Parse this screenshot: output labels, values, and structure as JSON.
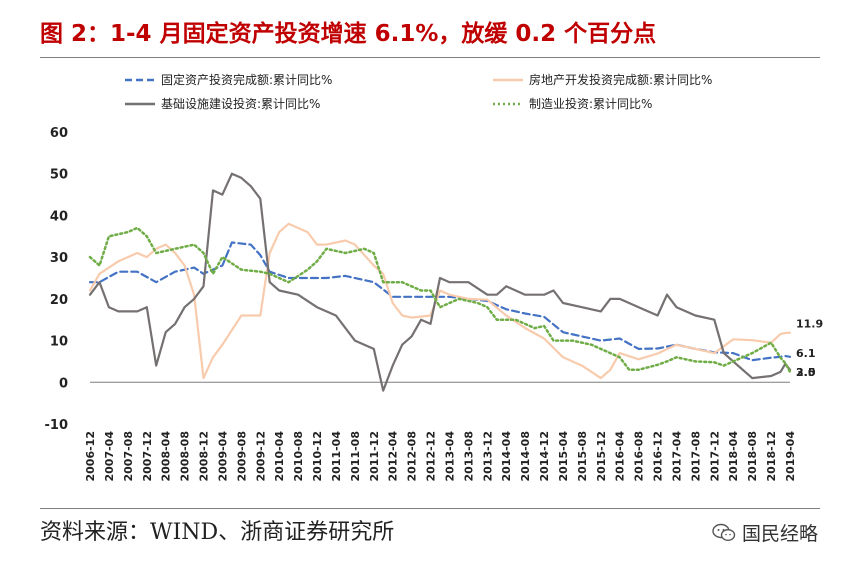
{
  "header": {
    "title": "图 2：1-4 月固定资产投资增速 6.1%，放缓 0.2 个百分点"
  },
  "footer": {
    "source": "资料来源：WIND、浙商证券研究所",
    "brand": "国民经略",
    "brand_icon": "wechat-icon"
  },
  "chart_data": {
    "type": "line",
    "title": "图 2：1-4 月固定资产投资增速 6.1%，放缓 0.2 个百分点",
    "ylim": [
      -10,
      60
    ],
    "yticks": [
      -10,
      0,
      10,
      20,
      30,
      40,
      50,
      60
    ],
    "xlim": [
      "2006-12",
      "2019-04"
    ],
    "xticks": [
      "2006-12",
      "2007-04",
      "2007-08",
      "2007-12",
      "2008-04",
      "2008-08",
      "2008-12",
      "2009-04",
      "2009-08",
      "2009-12",
      "2010-04",
      "2010-08",
      "2010-12",
      "2011-04",
      "2011-08",
      "2011-12",
      "2012-04",
      "2012-08",
      "2012-12",
      "2013-04",
      "2013-08",
      "2013-12",
      "2014-04",
      "2014-08",
      "2014-12",
      "2015-04",
      "2015-08",
      "2015-12",
      "2016-04",
      "2016-08",
      "2016-12",
      "2017-04",
      "2017-08",
      "2017-12",
      "2018-04",
      "2018-08",
      "2018-12",
      "2019-04"
    ],
    "grid": false,
    "legend_position": "top",
    "series": [
      {
        "name": "固定资产投资完成额:累计同比%",
        "color": "#4472c4",
        "style": "dashed",
        "points": [
          [
            "2006-12",
            24
          ],
          [
            "2007-02",
            24
          ],
          [
            "2007-06",
            26.5
          ],
          [
            "2007-10",
            26.5
          ],
          [
            "2008-02",
            24
          ],
          [
            "2008-06",
            26.5
          ],
          [
            "2008-10",
            27.5
          ],
          [
            "2008-12",
            26
          ],
          [
            "2009-04",
            28
          ],
          [
            "2009-06",
            33.5
          ],
          [
            "2009-10",
            33
          ],
          [
            "2009-12",
            30.5
          ],
          [
            "2010-02",
            26.5
          ],
          [
            "2010-06",
            25
          ],
          [
            "2010-10",
            25
          ],
          [
            "2011-02",
            25
          ],
          [
            "2011-06",
            25.5
          ],
          [
            "2011-10",
            24.5
          ],
          [
            "2011-12",
            24
          ],
          [
            "2012-04",
            20.5
          ],
          [
            "2012-08",
            20.5
          ],
          [
            "2012-12",
            20.5
          ],
          [
            "2013-04",
            20.5
          ],
          [
            "2013-08",
            20
          ],
          [
            "2013-12",
            19.5
          ],
          [
            "2014-04",
            17.5
          ],
          [
            "2014-08",
            16.5
          ],
          [
            "2014-12",
            15.7
          ],
          [
            "2015-04",
            12
          ],
          [
            "2015-08",
            11
          ],
          [
            "2015-12",
            10
          ],
          [
            "2016-04",
            10.5
          ],
          [
            "2016-08",
            8
          ],
          [
            "2016-12",
            8.1
          ],
          [
            "2017-04",
            9
          ],
          [
            "2017-08",
            8
          ],
          [
            "2017-12",
            7.2
          ],
          [
            "2018-04",
            7
          ],
          [
            "2018-08",
            5.3
          ],
          [
            "2018-12",
            5.9
          ],
          [
            "2019-02",
            6.1
          ],
          [
            "2019-03",
            6.3
          ],
          [
            "2019-04",
            6.1
          ]
        ]
      },
      {
        "name": "房地产开发投资完成额:累计同比%",
        "color": "#f8cbad",
        "style": "solid",
        "points": [
          [
            "2006-12",
            22
          ],
          [
            "2007-02",
            26
          ],
          [
            "2007-06",
            29
          ],
          [
            "2007-10",
            31
          ],
          [
            "2007-12",
            30
          ],
          [
            "2008-02",
            32
          ],
          [
            "2008-04",
            33
          ],
          [
            "2008-06",
            31
          ],
          [
            "2008-08",
            28
          ],
          [
            "2008-10",
            21
          ],
          [
            "2008-12",
            1
          ],
          [
            "2009-02",
            6
          ],
          [
            "2009-04",
            9
          ],
          [
            "2009-08",
            16
          ],
          [
            "2009-12",
            16
          ],
          [
            "2010-02",
            31
          ],
          [
            "2010-04",
            36
          ],
          [
            "2010-06",
            38
          ],
          [
            "2010-10",
            36
          ],
          [
            "2010-12",
            33
          ],
          [
            "2011-02",
            33
          ],
          [
            "2011-06",
            34
          ],
          [
            "2011-08",
            33
          ],
          [
            "2011-12",
            28
          ],
          [
            "2012-02",
            26
          ],
          [
            "2012-04",
            19
          ],
          [
            "2012-06",
            16
          ],
          [
            "2012-08",
            15.5
          ],
          [
            "2012-12",
            16
          ],
          [
            "2013-02",
            22
          ],
          [
            "2013-04",
            21
          ],
          [
            "2013-08",
            20
          ],
          [
            "2013-12",
            19.8
          ],
          [
            "2014-04",
            16
          ],
          [
            "2014-08",
            13
          ],
          [
            "2014-12",
            10.5
          ],
          [
            "2015-04",
            6
          ],
          [
            "2015-08",
            4
          ],
          [
            "2015-12",
            1
          ],
          [
            "2016-02",
            3
          ],
          [
            "2016-04",
            7
          ],
          [
            "2016-08",
            5.5
          ],
          [
            "2016-12",
            6.9
          ],
          [
            "2017-04",
            9
          ],
          [
            "2017-08",
            8
          ],
          [
            "2017-12",
            7
          ],
          [
            "2018-04",
            10.3
          ],
          [
            "2018-08",
            10.1
          ],
          [
            "2018-12",
            9.5
          ],
          [
            "2019-02",
            11.6
          ],
          [
            "2019-03",
            11.8
          ],
          [
            "2019-04",
            11.9
          ]
        ]
      },
      {
        "name": "基础设施建设投资:累计同比%",
        "color": "#767171",
        "style": "solid",
        "points": [
          [
            "2006-12",
            21
          ],
          [
            "2007-02",
            24
          ],
          [
            "2007-04",
            18
          ],
          [
            "2007-06",
            17
          ],
          [
            "2007-08",
            17
          ],
          [
            "2007-10",
            17
          ],
          [
            "2007-12",
            18
          ],
          [
            "2008-02",
            4
          ],
          [
            "2008-04",
            12
          ],
          [
            "2008-06",
            14
          ],
          [
            "2008-08",
            18
          ],
          [
            "2008-10",
            20
          ],
          [
            "2008-12",
            23
          ],
          [
            "2009-02",
            46
          ],
          [
            "2009-04",
            45
          ],
          [
            "2009-06",
            50
          ],
          [
            "2009-08",
            49
          ],
          [
            "2009-10",
            47
          ],
          [
            "2009-12",
            44
          ],
          [
            "2010-02",
            24
          ],
          [
            "2010-04",
            22
          ],
          [
            "2010-08",
            21
          ],
          [
            "2010-12",
            18
          ],
          [
            "2011-04",
            16
          ],
          [
            "2011-08",
            10
          ],
          [
            "2011-10",
            9
          ],
          [
            "2011-12",
            8
          ],
          [
            "2012-02",
            -2
          ],
          [
            "2012-04",
            4
          ],
          [
            "2012-06",
            9
          ],
          [
            "2012-08",
            11
          ],
          [
            "2012-10",
            15
          ],
          [
            "2012-12",
            14
          ],
          [
            "2013-02",
            25
          ],
          [
            "2013-04",
            24
          ],
          [
            "2013-08",
            24
          ],
          [
            "2013-12",
            21
          ],
          [
            "2014-02",
            21
          ],
          [
            "2014-04",
            23
          ],
          [
            "2014-08",
            21
          ],
          [
            "2014-12",
            21
          ],
          [
            "2015-02",
            22
          ],
          [
            "2015-04",
            19
          ],
          [
            "2015-08",
            18
          ],
          [
            "2015-12",
            17
          ],
          [
            "2016-02",
            20
          ],
          [
            "2016-04",
            20
          ],
          [
            "2016-08",
            18
          ],
          [
            "2016-12",
            16
          ],
          [
            "2017-02",
            21
          ],
          [
            "2017-04",
            18
          ],
          [
            "2017-08",
            16
          ],
          [
            "2017-12",
            15
          ],
          [
            "2018-02",
            7
          ],
          [
            "2018-04",
            5
          ],
          [
            "2018-08",
            1
          ],
          [
            "2018-12",
            1.5
          ],
          [
            "2019-02",
            2.5
          ],
          [
            "2019-03",
            4.4
          ],
          [
            "2019-04",
            3.0
          ]
        ]
      },
      {
        "name": "制造业投资:累计同比%",
        "color": "#70ad47",
        "style": "dotted",
        "points": [
          [
            "2006-12",
            30
          ],
          [
            "2007-02",
            28
          ],
          [
            "2007-04",
            35
          ],
          [
            "2007-08",
            36
          ],
          [
            "2007-10",
            37
          ],
          [
            "2007-12",
            35
          ],
          [
            "2008-02",
            31
          ],
          [
            "2008-06",
            32
          ],
          [
            "2008-10",
            33
          ],
          [
            "2008-12",
            31
          ],
          [
            "2009-02",
            26
          ],
          [
            "2009-04",
            30
          ],
          [
            "2009-08",
            27
          ],
          [
            "2009-12",
            26.5
          ],
          [
            "2010-02",
            26
          ],
          [
            "2010-06",
            24
          ],
          [
            "2010-10",
            27
          ],
          [
            "2010-12",
            29
          ],
          [
            "2011-02",
            32
          ],
          [
            "2011-06",
            31
          ],
          [
            "2011-10",
            32
          ],
          [
            "2011-12",
            31
          ],
          [
            "2012-02",
            24
          ],
          [
            "2012-06",
            24
          ],
          [
            "2012-10",
            22
          ],
          [
            "2012-12",
            22
          ],
          [
            "2013-02",
            18
          ],
          [
            "2013-06",
            20
          ],
          [
            "2013-10",
            19
          ],
          [
            "2013-12",
            18
          ],
          [
            "2014-02",
            15
          ],
          [
            "2014-06",
            15
          ],
          [
            "2014-10",
            13
          ],
          [
            "2014-12",
            13.5
          ],
          [
            "2015-02",
            10
          ],
          [
            "2015-06",
            10
          ],
          [
            "2015-10",
            9
          ],
          [
            "2015-12",
            8
          ],
          [
            "2016-02",
            7
          ],
          [
            "2016-04",
            6
          ],
          [
            "2016-06",
            3
          ],
          [
            "2016-08",
            3
          ],
          [
            "2016-12",
            4.2
          ],
          [
            "2017-02",
            5
          ],
          [
            "2017-04",
            6
          ],
          [
            "2017-08",
            5
          ],
          [
            "2017-12",
            4.8
          ],
          [
            "2018-02",
            4
          ],
          [
            "2018-04",
            5
          ],
          [
            "2018-08",
            7
          ],
          [
            "2018-12",
            9.5
          ],
          [
            "2019-02",
            5.9
          ],
          [
            "2019-03",
            4.6
          ],
          [
            "2019-04",
            2.5
          ]
        ]
      }
    ],
    "end_labels": [
      {
        "text": "11.9",
        "value": 11.9
      },
      {
        "text": "6.1",
        "value": 6.1
      },
      {
        "text": "2.5",
        "value": 2.5
      },
      {
        "text": "3.0",
        "value": 3.0
      }
    ]
  }
}
